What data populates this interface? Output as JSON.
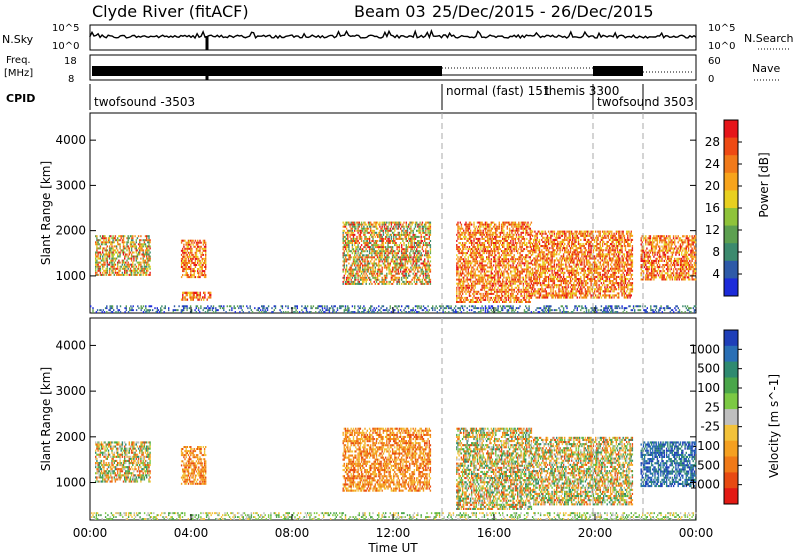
{
  "header": {
    "station": "Clyde River (fitACF)",
    "beam": "Beam 03",
    "date_range": "25/Dec/2015 - 26/Dec/2015"
  },
  "top_panels": {
    "nsky_label": "N.Sky",
    "nsky_ticks": [
      "10^5",
      "10^0"
    ],
    "nsearch_label": "N.Search",
    "nsearch_ticks": [
      "10^5",
      "10^0"
    ],
    "freq_label": "Freq.",
    "freq_unit": "[MHz]",
    "freq_ticks": [
      "18",
      "8"
    ],
    "nave_label": "Nave",
    "nave_ticks": [
      "60",
      "0"
    ],
    "cpid_label": "CPID",
    "cpid_segments": [
      {
        "label": "twofsound -3503",
        "start_h": 0,
        "end_h": 14
      },
      {
        "label": "normal (fast) 151",
        "start_h": 14,
        "end_h": 20
      },
      {
        "label": "themis 3300",
        "start_h": 17.8,
        "end_h": 20
      },
      {
        "label": "twofsound 3503",
        "start_h": 20,
        "end_h": 24
      }
    ]
  },
  "axes": {
    "xlabel": "Time UT",
    "x_ticks": [
      "00:00",
      "04:00",
      "08:00",
      "12:00",
      "16:00",
      "20:00",
      "00:00"
    ],
    "ylabel": "Slant Range [km]",
    "y_ticks": [
      "1000",
      "2000",
      "3000",
      "4000"
    ]
  },
  "colorbars": {
    "power": {
      "label": "Power [dB]",
      "ticks": [
        "4",
        "8",
        "12",
        "16",
        "20",
        "24",
        "28"
      ],
      "colors": [
        "#1c2bd9",
        "#2e5aa8",
        "#3c8a6e",
        "#5da050",
        "#8fc33a",
        "#e8d020",
        "#f7a41c",
        "#f17a1a",
        "#ee4a14",
        "#e6151a"
      ]
    },
    "velocity": {
      "label": "Velocity [m s^-1]",
      "ticks": [
        "1000",
        "500",
        "100",
        "25",
        "-25",
        "-100",
        "-500",
        "-1000"
      ],
      "colors": [
        "#1f3fb8",
        "#2a6fb5",
        "#2f8a70",
        "#4aa64a",
        "#7cc944",
        "#bfbfbf",
        "#f3c23a",
        "#f5a021",
        "#f07a18",
        "#e84a12",
        "#e31a14"
      ]
    }
  },
  "chart_data": [
    {
      "type": "heatmap",
      "title": "Power",
      "xlabel": "Time UT",
      "ylabel": "Slant Range [km]",
      "x_range_hours": [
        0,
        24
      ],
      "ylim": [
        180,
        4600
      ],
      "colorbar": {
        "label": "Power [dB]",
        "range": [
          0,
          30
        ]
      },
      "patches": [
        {
          "t0": 0.2,
          "t1": 2.4,
          "r0": 1000,
          "r1": 1900,
          "level": "mid-high"
        },
        {
          "t0": 3.6,
          "t1": 4.6,
          "r0": 950,
          "r1": 1800,
          "level": "high"
        },
        {
          "t0": 3.6,
          "t1": 4.8,
          "r0": 450,
          "r1": 650,
          "level": "high"
        },
        {
          "t0": 10.0,
          "t1": 13.5,
          "r0": 800,
          "r1": 2200,
          "level": "mid-high"
        },
        {
          "t0": 14.5,
          "t1": 17.5,
          "r0": 400,
          "r1": 2200,
          "level": "high"
        },
        {
          "t0": 17.5,
          "t1": 21.5,
          "r0": 500,
          "r1": 2000,
          "level": "high"
        },
        {
          "t0": 21.8,
          "t1": 24.0,
          "r0": 900,
          "r1": 1900,
          "level": "high"
        },
        {
          "t0": 0.0,
          "t1": 24.0,
          "r0": 180,
          "r1": 350,
          "level": "low"
        }
      ]
    },
    {
      "type": "heatmap",
      "title": "Velocity",
      "xlabel": "Time UT",
      "ylabel": "Slant Range [km]",
      "x_range_hours": [
        0,
        24
      ],
      "ylim": [
        180,
        4600
      ],
      "colorbar": {
        "label": "Velocity [m s^-1]",
        "range": [
          -1000,
          1000
        ]
      },
      "patches": [
        {
          "t0": 0.2,
          "t1": 2.4,
          "r0": 1000,
          "r1": 1900,
          "level": "mixed"
        },
        {
          "t0": 3.6,
          "t1": 4.6,
          "r0": 950,
          "r1": 1800,
          "level": "negative"
        },
        {
          "t0": 10.0,
          "t1": 13.5,
          "r0": 800,
          "r1": 2200,
          "level": "negative"
        },
        {
          "t0": 14.5,
          "t1": 17.5,
          "r0": 400,
          "r1": 2200,
          "level": "mixed"
        },
        {
          "t0": 17.5,
          "t1": 21.5,
          "r0": 500,
          "r1": 2000,
          "level": "mixed"
        },
        {
          "t0": 21.8,
          "t1": 24.0,
          "r0": 900,
          "r1": 1900,
          "level": "positive"
        },
        {
          "t0": 0.0,
          "t1": 24.0,
          "r0": 180,
          "r1": 350,
          "level": "near-zero"
        }
      ]
    }
  ]
}
